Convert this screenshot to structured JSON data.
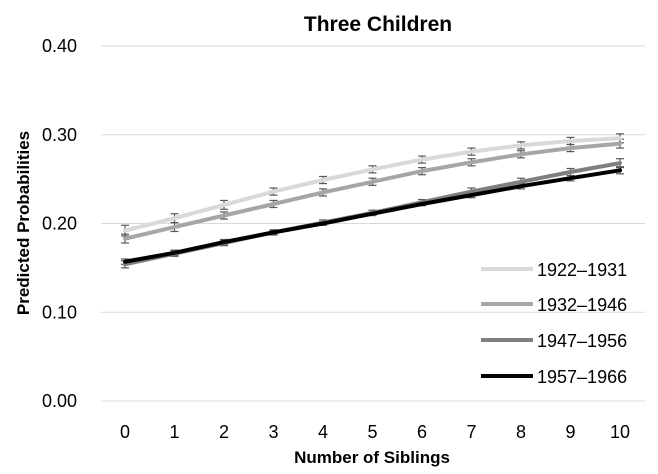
{
  "chart_data": {
    "type": "line",
    "title": "Three Children",
    "xlabel": "Number of Siblings",
    "ylabel": "Predicted Probabilities",
    "x": [
      0,
      1,
      2,
      3,
      4,
      5,
      6,
      7,
      8,
      9,
      10
    ],
    "xlim": [
      0,
      10
    ],
    "ylim": [
      0,
      0.4
    ],
    "yticks": [
      "0.00",
      "0.10",
      "0.20",
      "0.30",
      "0.40"
    ],
    "grid": true,
    "legend_position": "bottom-right",
    "series": [
      {
        "name": "1922–1931",
        "color": "#d9d9d9",
        "values": [
          0.192,
          0.206,
          0.221,
          0.236,
          0.249,
          0.261,
          0.272,
          0.281,
          0.288,
          0.293,
          0.296
        ],
        "error": [
          0.006,
          0.005,
          0.005,
          0.004,
          0.004,
          0.004,
          0.004,
          0.004,
          0.004,
          0.004,
          0.005
        ]
      },
      {
        "name": "1932–1946",
        "color": "#a6a6a6",
        "values": [
          0.183,
          0.196,
          0.209,
          0.222,
          0.235,
          0.247,
          0.259,
          0.269,
          0.278,
          0.285,
          0.29
        ],
        "error": [
          0.005,
          0.005,
          0.004,
          0.004,
          0.004,
          0.004,
          0.004,
          0.004,
          0.004,
          0.004,
          0.005
        ]
      },
      {
        "name": "1947–1956",
        "color": "#7f7f7f",
        "values": [
          0.154,
          0.166,
          0.178,
          0.19,
          0.201,
          0.212,
          0.224,
          0.236,
          0.247,
          0.258,
          0.268
        ],
        "error": [
          0.004,
          0.003,
          0.003,
          0.003,
          0.003,
          0.003,
          0.003,
          0.004,
          0.004,
          0.004,
          0.005
        ]
      },
      {
        "name": "1957–1966",
        "color": "#000000",
        "values": [
          0.157,
          0.167,
          0.179,
          0.19,
          0.2,
          0.211,
          0.222,
          0.232,
          0.242,
          0.251,
          0.26
        ],
        "error": [
          0.003,
          0.003,
          0.003,
          0.002,
          0.002,
          0.002,
          0.002,
          0.003,
          0.003,
          0.003,
          0.004
        ]
      }
    ]
  }
}
